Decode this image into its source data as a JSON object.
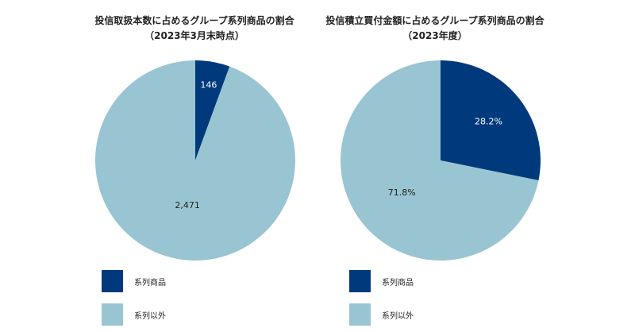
{
  "colors": {
    "series_affiliated": "#003a7d",
    "series_other": "#99c5d2"
  },
  "chart_data": [
    {
      "type": "pie",
      "title": "投信取扱本数に占めるグループ系列商品の割合",
      "subtitle": "（2023年3月末時点）",
      "categories": [
        "系列商品",
        "系列以外"
      ],
      "values": [
        146,
        2471
      ],
      "data_labels": [
        "146",
        "2,471"
      ],
      "colors": [
        "#003a7d",
        "#99c5d2"
      ],
      "legend_placement": "bottom-left"
    },
    {
      "type": "pie",
      "title": "投信積立買付金額に占めるグループ系列商品の割合",
      "subtitle": "（2023年度）",
      "categories": [
        "系列商品",
        "系列以外"
      ],
      "values": [
        28.2,
        71.8
      ],
      "data_labels": [
        "28.2%",
        "71.8%"
      ],
      "colors": [
        "#003a7d",
        "#99c5d2"
      ],
      "legend_placement": "bottom-left"
    }
  ]
}
